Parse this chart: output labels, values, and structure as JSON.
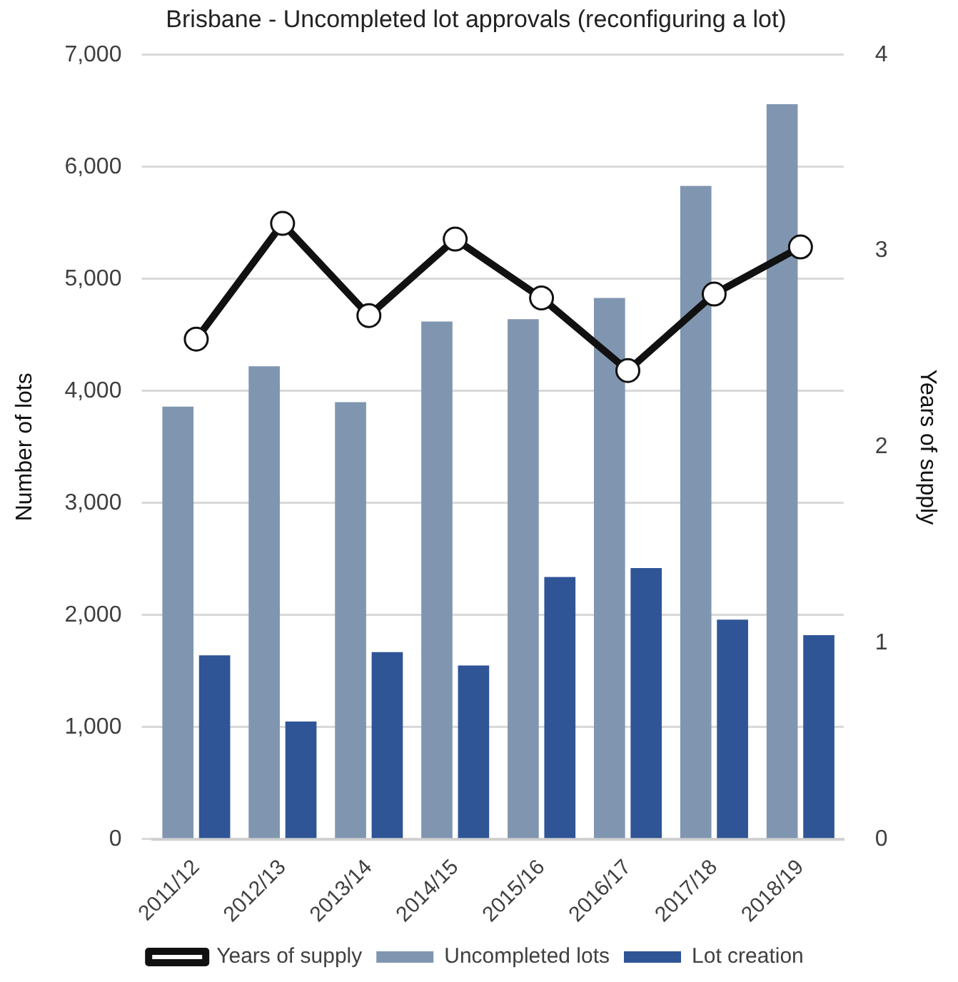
{
  "chart_data": {
    "type": "bar",
    "title": "Brisbane - Uncompleted lot approvals (reconfiguring a lot)",
    "categories": [
      "2011/12",
      "2012/13",
      "2013/14",
      "2014/15",
      "2015/16",
      "2016/17",
      "2017/18",
      "2018/19"
    ],
    "series": [
      {
        "name": "Uncompleted lots",
        "color": "#8096b0",
        "values": [
          3860,
          4220,
          3900,
          4620,
          4640,
          4830,
          5830,
          6560
        ]
      },
      {
        "name": "Lot creation",
        "color": "#2f5597",
        "values": [
          1640,
          1050,
          1670,
          1550,
          2340,
          2420,
          1960,
          1820
        ]
      },
      {
        "name": "Years of supply",
        "type": "line",
        "axis": "y2",
        "color": "#111111",
        "marker": "circle",
        "values": [
          2.55,
          3.14,
          2.67,
          3.06,
          2.76,
          2.39,
          2.78,
          3.02
        ]
      }
    ],
    "ylabel": "Number of lots",
    "y2label": "Years of supply",
    "ylim": [
      0,
      7000
    ],
    "yticks": [
      {
        "value": 0,
        "label": "0"
      },
      {
        "value": 1000,
        "label": "1,000"
      },
      {
        "value": 2000,
        "label": "2,000"
      },
      {
        "value": 3000,
        "label": "3,000"
      },
      {
        "value": 4000,
        "label": "4,000"
      },
      {
        "value": 5000,
        "label": "5,000"
      },
      {
        "value": 6000,
        "label": "6,000"
      },
      {
        "value": 7000,
        "label": "7,000"
      }
    ],
    "y2lim": [
      0,
      4
    ],
    "y2ticks": [
      0,
      1,
      2,
      3,
      4
    ],
    "grid": "y",
    "legend": "bottom"
  }
}
